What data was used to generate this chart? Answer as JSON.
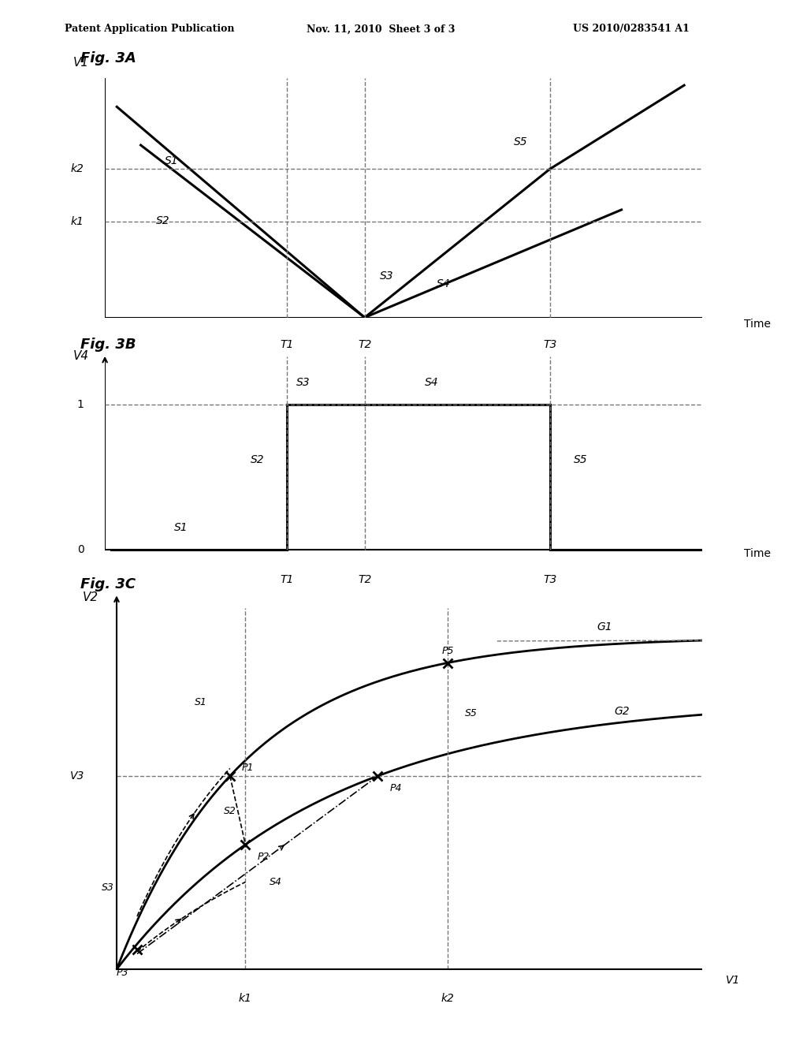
{
  "header_left": "Patent Application Publication",
  "header_mid": "Nov. 11, 2010  Sheet 3 of 3",
  "header_right": "US 2010/0283541 A1",
  "background_color": "#ffffff",
  "line_color": "#000000",
  "dashed_color": "#777777",
  "T1": 0.305,
  "T2": 0.435,
  "T3": 0.745,
  "k1y": 0.4,
  "k2y": 0.62,
  "k1x": 0.22,
  "k2x": 0.565,
  "V3y": 0.535
}
